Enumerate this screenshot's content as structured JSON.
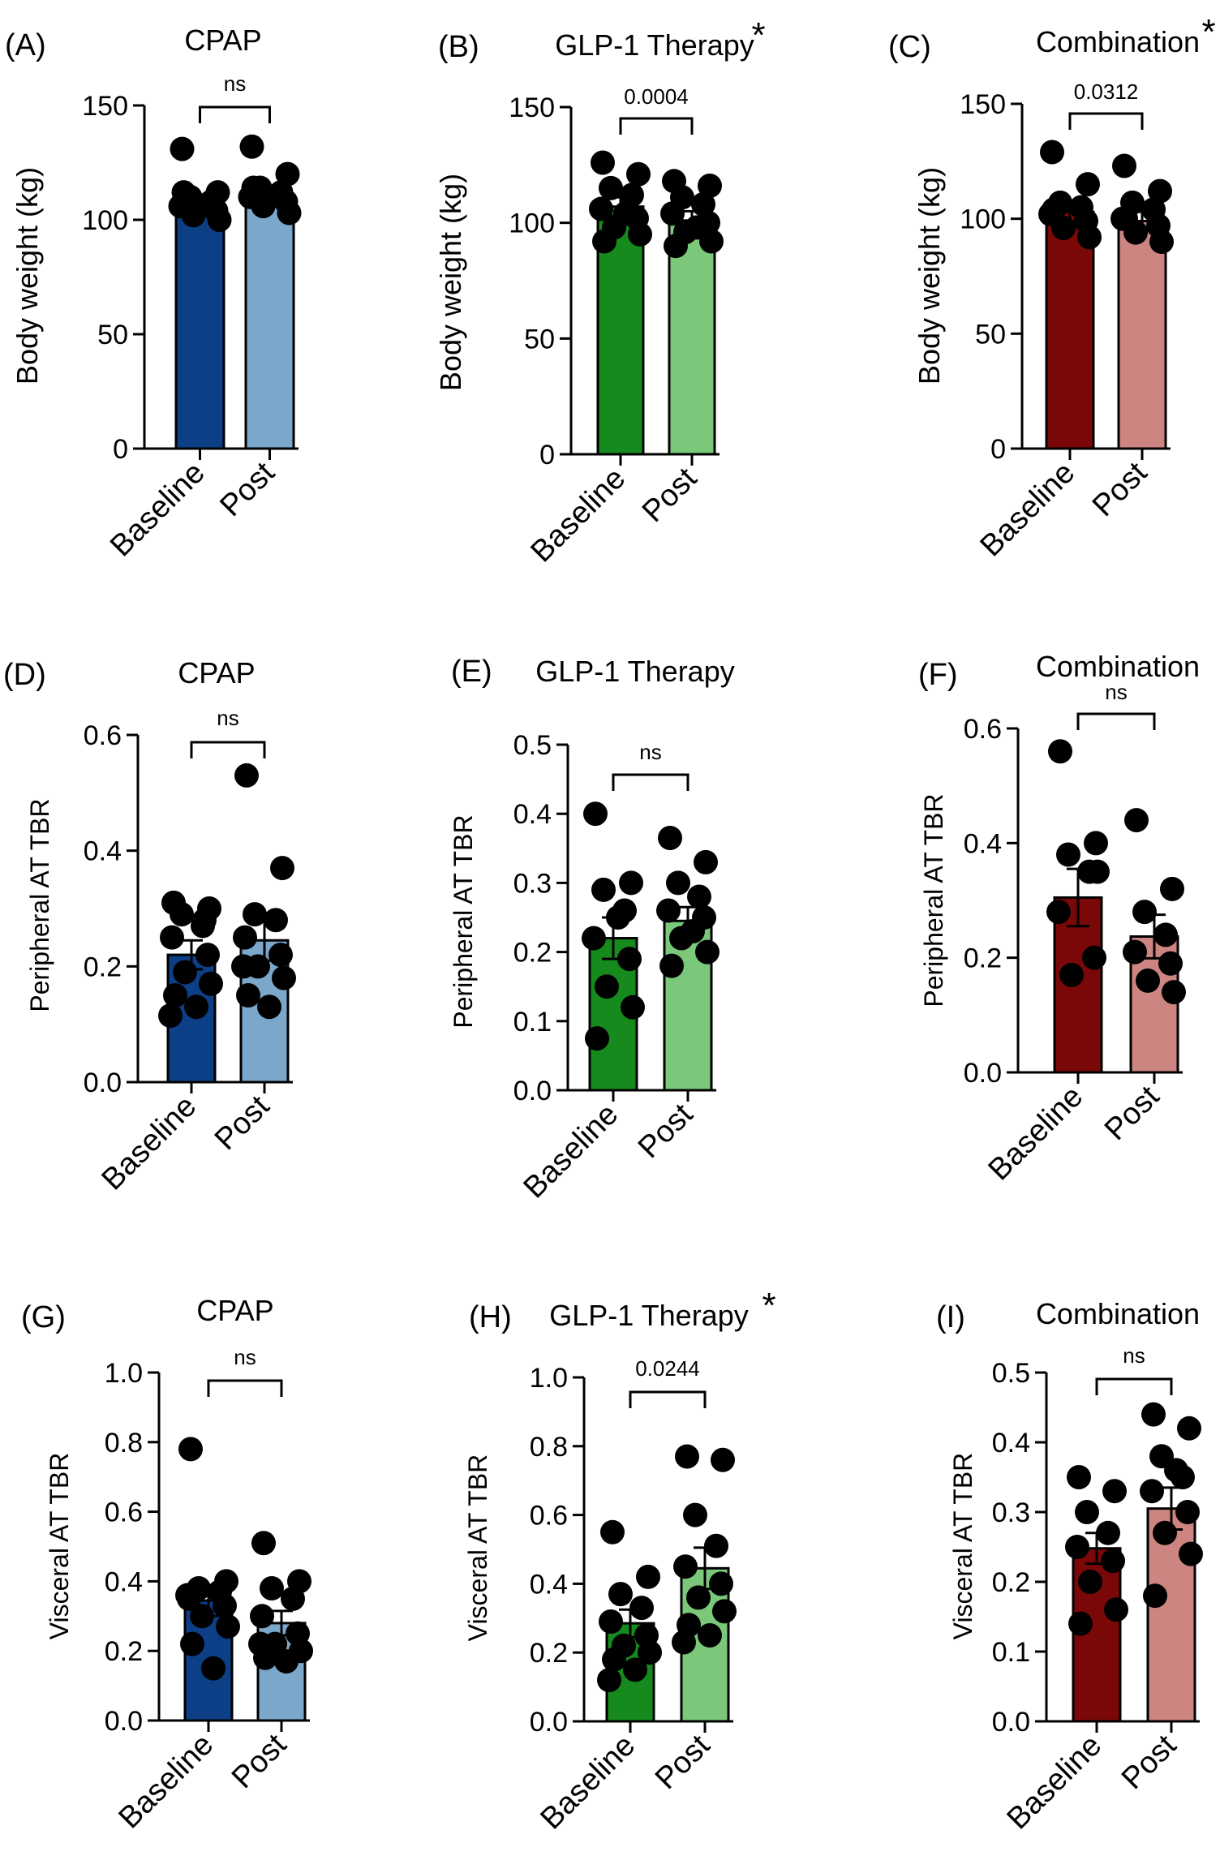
{
  "colors": {
    "cpap_baseline": "#0d3f86",
    "cpap_post": "#7ba7cb",
    "glp1_baseline": "#168a1c",
    "glp1_post": "#7bc87b",
    "combo_baseline": "#7a0808",
    "combo_post": "#cc8580",
    "dot": "#000000"
  },
  "chart_data": [
    {
      "id": "A",
      "letter": "(A)",
      "title": "CPAP",
      "star": "",
      "type": "bar",
      "group": "cpap",
      "categories": [
        "Baseline",
        "Post"
      ],
      "ylabel": "Body weight (kg)",
      "ylim": [
        0,
        150
      ],
      "yticks": [
        "0",
        "50",
        "100",
        "150"
      ],
      "comparison": "ns",
      "series": [
        {
          "mean": 108,
          "sem": 3,
          "points": [
            131,
            112,
            110,
            108,
            106,
            104,
            102,
            100,
            112
          ]
        },
        {
          "mean": 109,
          "sem": 3,
          "points": [
            132,
            120,
            114,
            112,
            110,
            108,
            106,
            103,
            114
          ]
        }
      ]
    },
    {
      "id": "B",
      "letter": "(B)",
      "title": "GLP-1 Therapy",
      "star": "*",
      "type": "bar",
      "group": "glp1",
      "categories": [
        "Baseline",
        "Post"
      ],
      "ylabel": "Body weight (kg)",
      "ylim": [
        0,
        150
      ],
      "yticks": [
        "0",
        "50",
        "100",
        "150"
      ],
      "comparison": "0.0004",
      "series": [
        {
          "mean": 107,
          "sem": 4,
          "points": [
            126,
            121,
            115,
            112,
            106,
            102,
            98,
            95,
            92,
            104
          ]
        },
        {
          "mean": 101,
          "sem": 4,
          "points": [
            118,
            116,
            111,
            108,
            104,
            100,
            96,
            92,
            90,
            98
          ]
        }
      ]
    },
    {
      "id": "C",
      "letter": "(C)",
      "title": "Combination",
      "star": "*",
      "type": "bar",
      "group": "combo",
      "categories": [
        "Baseline",
        "Post"
      ],
      "ylabel": "Body weight (kg)",
      "ylim": [
        0,
        150
      ],
      "yticks": [
        "0",
        "50",
        "100",
        "150"
      ],
      "comparison": "0.0312",
      "series": [
        {
          "mean": 103,
          "sem": 4,
          "points": [
            129,
            115,
            107,
            105,
            102,
            99,
            96,
            92,
            104
          ]
        },
        {
          "mean": 99,
          "sem": 4,
          "points": [
            123,
            112,
            107,
            104,
            100,
            97,
            94,
            90,
            100
          ]
        }
      ]
    },
    {
      "id": "D",
      "letter": "(D)",
      "title": "CPAP",
      "star": "",
      "type": "bar",
      "group": "cpap",
      "categories": [
        "Baseline",
        "Post"
      ],
      "ylabel": "Peripheral AT TBR",
      "ylim": [
        0,
        0.6
      ],
      "yticks": [
        "0.0",
        "0.2",
        "0.4",
        "0.6"
      ],
      "comparison": "ns",
      "series": [
        {
          "mean": 0.22,
          "sem": 0.025,
          "points": [
            0.31,
            0.3,
            0.29,
            0.27,
            0.25,
            0.22,
            0.19,
            0.17,
            0.15,
            0.13,
            0.115,
            0.28
          ]
        },
        {
          "mean": 0.245,
          "sem": 0.035,
          "points": [
            0.53,
            0.37,
            0.29,
            0.28,
            0.25,
            0.22,
            0.2,
            0.18,
            0.15,
            0.13,
            0.2
          ]
        }
      ]
    },
    {
      "id": "E",
      "letter": "(E)",
      "title": "GLP-1 Therapy",
      "star": "",
      "type": "bar",
      "group": "glp1",
      "categories": [
        "Baseline",
        "Post"
      ],
      "ylabel": "Peripheral AT TBR",
      "ylim": [
        0,
        0.5
      ],
      "yticks": [
        "0.0",
        "0.1",
        "0.2",
        "0.3",
        "0.4",
        "0.5"
      ],
      "comparison": "ns",
      "series": [
        {
          "mean": 0.22,
          "sem": 0.03,
          "points": [
            0.4,
            0.3,
            0.29,
            0.26,
            0.22,
            0.19,
            0.15,
            0.12,
            0.075,
            0.25
          ]
        },
        {
          "mean": 0.245,
          "sem": 0.02,
          "points": [
            0.365,
            0.33,
            0.3,
            0.28,
            0.26,
            0.25,
            0.22,
            0.2,
            0.18,
            0.23
          ]
        }
      ]
    },
    {
      "id": "F",
      "letter": "(F)",
      "title": "Combination",
      "star": "",
      "type": "bar",
      "group": "combo",
      "categories": [
        "Baseline",
        "Post"
      ],
      "ylabel": "Peripheral AT TBR",
      "ylim": [
        0,
        0.6
      ],
      "yticks": [
        "0.0",
        "0.2",
        "0.4",
        "0.6"
      ],
      "comparison": "ns",
      "series": [
        {
          "mean": 0.305,
          "sem": 0.05,
          "points": [
            0.56,
            0.4,
            0.38,
            0.35,
            0.28,
            0.2,
            0.17,
            0.35
          ]
        },
        {
          "mean": 0.237,
          "sem": 0.038,
          "points": [
            0.44,
            0.32,
            0.28,
            0.24,
            0.21,
            0.19,
            0.16,
            0.14
          ]
        }
      ]
    },
    {
      "id": "G",
      "letter": "(G)",
      "title": "CPAP",
      "star": "",
      "type": "bar",
      "group": "cpap",
      "categories": [
        "Baseline",
        "Post"
      ],
      "ylabel": "Visceral AT TBR",
      "ylim": [
        0,
        1.0
      ],
      "yticks": [
        "0.0",
        "0.2",
        "0.4",
        "0.6",
        "0.8",
        "1.0"
      ],
      "comparison": "ns",
      "series": [
        {
          "mean": 0.345,
          "sem": 0.045,
          "points": [
            0.78,
            0.4,
            0.38,
            0.37,
            0.35,
            0.33,
            0.3,
            0.27,
            0.22,
            0.15,
            0.36
          ]
        },
        {
          "mean": 0.28,
          "sem": 0.035,
          "points": [
            0.51,
            0.4,
            0.38,
            0.35,
            0.3,
            0.25,
            0.22,
            0.2,
            0.18,
            0.17,
            0.22
          ]
        }
      ]
    },
    {
      "id": "H",
      "letter": "(H)",
      "title": "GLP-1 Therapy",
      "star": "*",
      "type": "bar",
      "group": "glp1",
      "categories": [
        "Baseline",
        "Post"
      ],
      "ylabel": "Visceral AT TBR",
      "ylim": [
        0,
        1.0
      ],
      "yticks": [
        "0.0",
        "0.2",
        "0.4",
        "0.6",
        "0.8",
        "1.0"
      ],
      "comparison": "0.0244",
      "series": [
        {
          "mean": 0.285,
          "sem": 0.04,
          "points": [
            0.55,
            0.42,
            0.37,
            0.33,
            0.29,
            0.25,
            0.22,
            0.2,
            0.18,
            0.15,
            0.12
          ]
        },
        {
          "mean": 0.445,
          "sem": 0.06,
          "points": [
            0.77,
            0.76,
            0.6,
            0.51,
            0.45,
            0.4,
            0.36,
            0.32,
            0.28,
            0.25,
            0.23
          ]
        }
      ]
    },
    {
      "id": "I",
      "letter": "(I)",
      "title": "Combination",
      "star": "",
      "type": "bar",
      "group": "combo",
      "categories": [
        "Baseline",
        "Post"
      ],
      "ylabel": "Visceral AT TBR",
      "ylim": [
        0,
        0.5
      ],
      "yticks": [
        "0.0",
        "0.1",
        "0.2",
        "0.3",
        "0.4",
        "0.5"
      ],
      "comparison": "ns",
      "series": [
        {
          "mean": 0.248,
          "sem": 0.022,
          "points": [
            0.35,
            0.33,
            0.3,
            0.27,
            0.25,
            0.23,
            0.2,
            0.16,
            0.14
          ]
        },
        {
          "mean": 0.305,
          "sem": 0.03,
          "points": [
            0.44,
            0.42,
            0.38,
            0.35,
            0.33,
            0.3,
            0.27,
            0.24,
            0.18,
            0.36
          ]
        }
      ]
    }
  ]
}
